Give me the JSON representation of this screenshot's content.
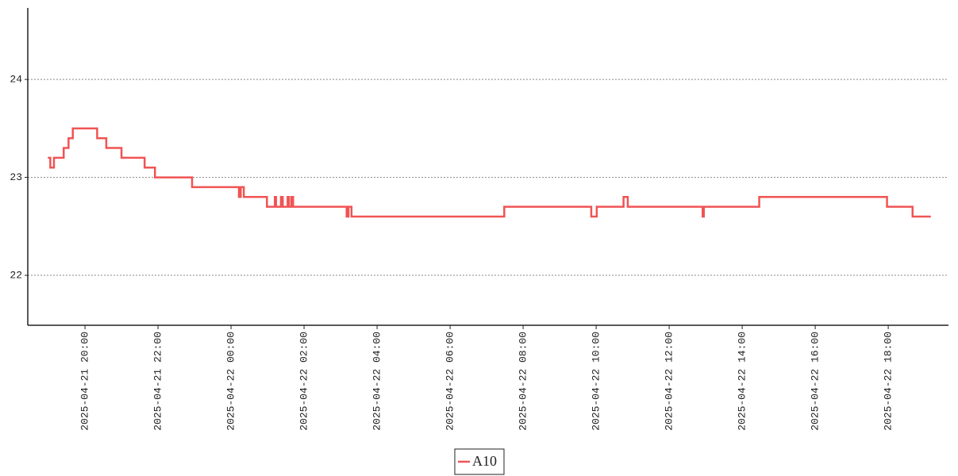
{
  "chart_data": {
    "type": "line",
    "step": "post",
    "x": [
      "2025-04-21 18:59",
      "2025-04-21 19:03",
      "2025-04-21 19:09",
      "2025-04-21 19:25",
      "2025-04-21 19:33",
      "2025-04-21 19:40",
      "2025-04-21 20:20",
      "2025-04-21 20:35",
      "2025-04-21 21:00",
      "2025-04-21 21:38",
      "2025-04-21 21:55",
      "2025-04-21 22:56",
      "2025-04-22 00:13",
      "2025-04-22 00:16",
      "2025-04-22 00:21",
      "2025-04-22 00:59",
      "2025-04-22 01:12",
      "2025-04-22 01:14",
      "2025-04-22 01:22",
      "2025-04-22 01:25",
      "2025-04-22 01:33",
      "2025-04-22 01:35",
      "2025-04-22 01:39",
      "2025-04-22 01:42",
      "2025-04-22 03:10",
      "2025-04-22 03:13",
      "2025-04-22 03:18",
      "2025-04-22 07:29",
      "2025-04-22 09:52",
      "2025-04-22 10:01",
      "2025-04-22 10:45",
      "2025-04-22 10:52",
      "2025-04-22 12:55",
      "2025-04-22 12:57",
      "2025-04-22 14:28",
      "2025-04-22 17:58",
      "2025-04-22 18:40",
      "2025-04-22 19:10"
    ],
    "series": [
      {
        "name": "A10",
        "color": "#f05454",
        "values": [
          23.2,
          23.1,
          23.2,
          23.3,
          23.4,
          23.5,
          23.4,
          23.3,
          23.2,
          23.1,
          23.0,
          22.9,
          22.8,
          22.9,
          22.8,
          22.7,
          22.8,
          22.7,
          22.8,
          22.7,
          22.8,
          22.7,
          22.8,
          22.7,
          22.6,
          22.7,
          22.6,
          22.7,
          22.6,
          22.7,
          22.8,
          22.7,
          22.6,
          22.7,
          22.8,
          22.7,
          22.6,
          22.6
        ]
      }
    ],
    "xlim": [
      "2025-04-21 18:26",
      "2025-04-22 19:39"
    ],
    "xticks": [
      "2025-04-21 20:00",
      "2025-04-21 22:00",
      "2025-04-22 00:00",
      "2025-04-22 02:00",
      "2025-04-22 04:00",
      "2025-04-22 06:00",
      "2025-04-22 08:00",
      "2025-04-22 10:00",
      "2025-04-22 12:00",
      "2025-04-22 14:00",
      "2025-04-22 16:00",
      "2025-04-22 18:00"
    ],
    "ylim": [
      21.49,
      24.73
    ],
    "yticks": [
      22,
      23,
      24
    ],
    "grid": true,
    "legend": "bottom"
  }
}
